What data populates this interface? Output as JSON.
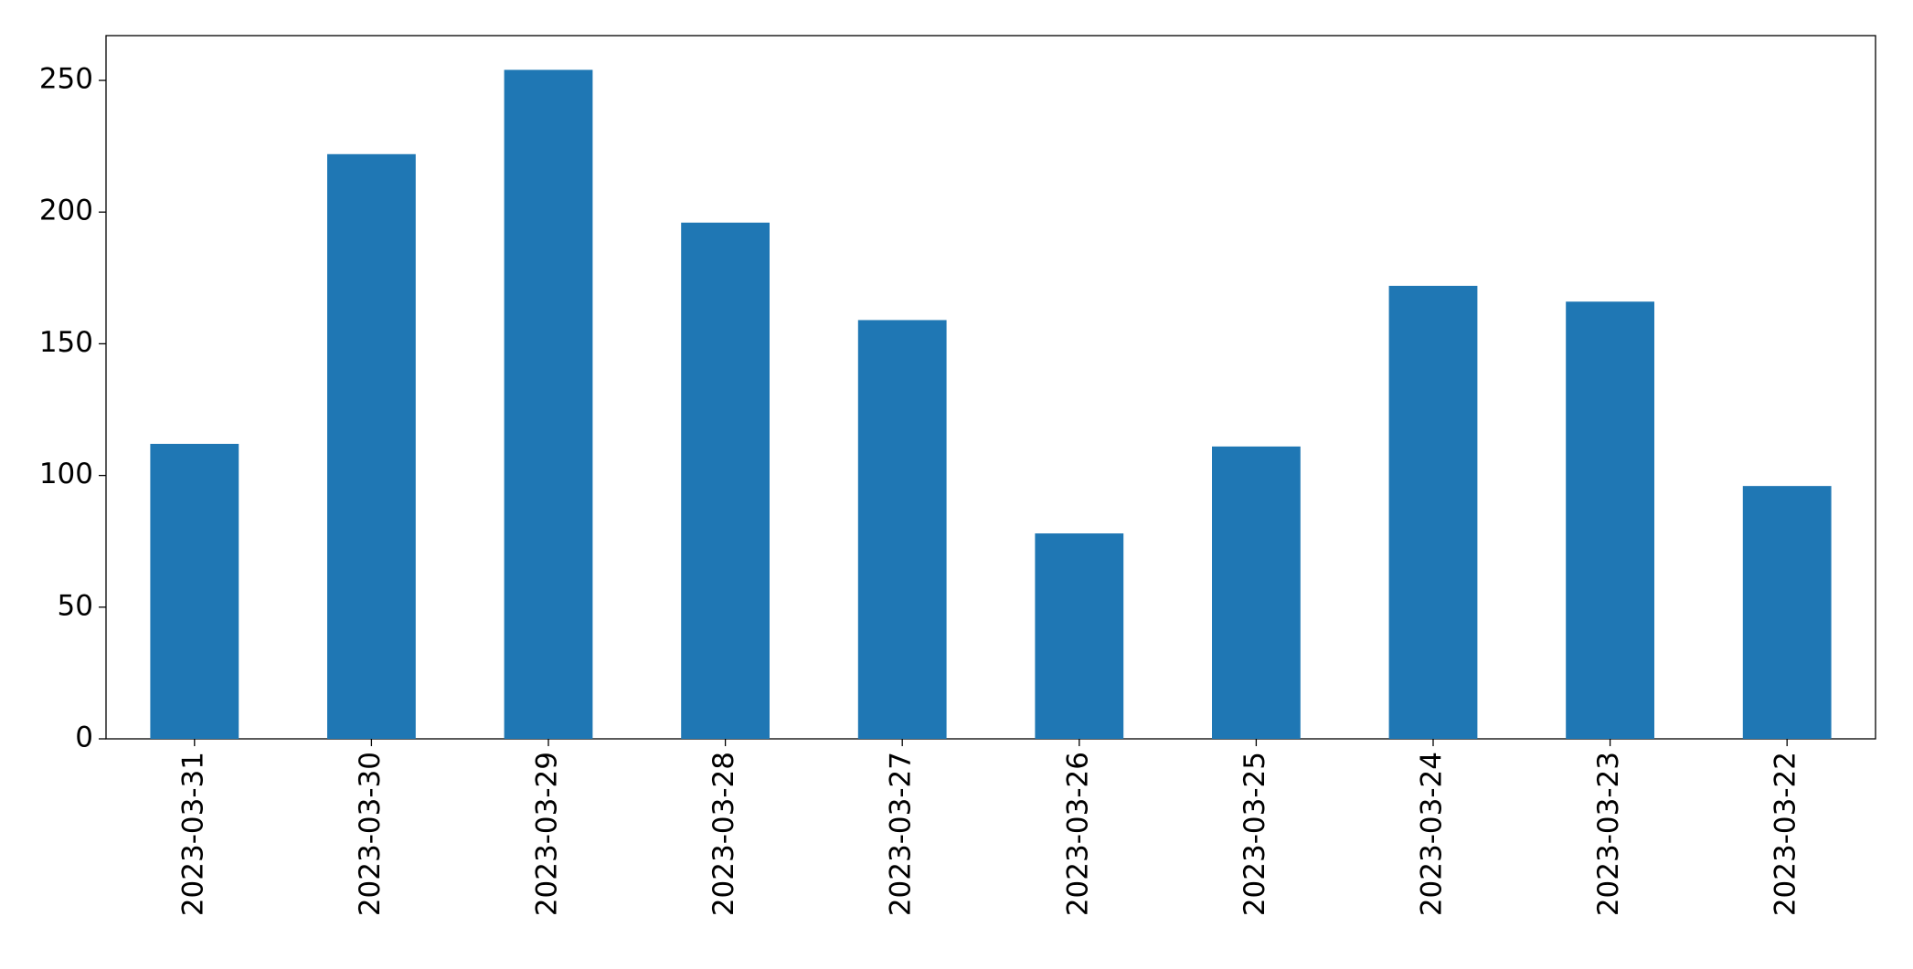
{
  "chart_data": {
    "type": "bar",
    "categories": [
      "2023-03-31",
      "2023-03-30",
      "2023-03-29",
      "2023-03-28",
      "2023-03-27",
      "2023-03-26",
      "2023-03-25",
      "2023-03-24",
      "2023-03-23",
      "2023-03-22"
    ],
    "values": [
      112,
      222,
      254,
      196,
      159,
      78,
      111,
      172,
      166,
      96
    ],
    "color": "#1f77b4",
    "ylim": [
      0,
      267
    ],
    "yticks": [
      0,
      50,
      100,
      150,
      200,
      250
    ],
    "grid": false
  }
}
